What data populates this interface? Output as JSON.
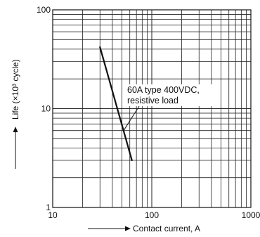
{
  "chart_data": {
    "type": "line",
    "title": "",
    "xlabel": "Contact current, A",
    "ylabel": "Life (×10³ cycle)",
    "x_scale": "log",
    "y_scale": "log",
    "xlim": [
      10,
      1000
    ],
    "ylim": [
      1,
      100
    ],
    "x_ticks": [
      "10",
      "100",
      "1000"
    ],
    "y_ticks": [
      "1",
      "10",
      "100"
    ],
    "grid": true,
    "series": [
      {
        "name": "60A type 400VDC, resistive load",
        "x": [
          30,
          63
        ],
        "y": [
          42,
          3
        ]
      }
    ],
    "annotation": {
      "lines": [
        "60A type 400VDC,",
        "resistive load"
      ],
      "points_to": [
        52,
        6
      ]
    },
    "colors": {
      "line": "#111111",
      "grid": "#222222"
    }
  }
}
